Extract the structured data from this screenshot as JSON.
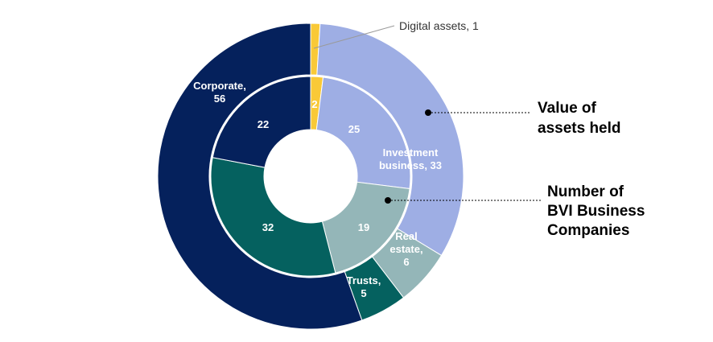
{
  "chart_data": {
    "type": "donut",
    "title": "",
    "rings": [
      {
        "name": "Value of assets held",
        "position": "outer",
        "slices": [
          {
            "label": "Digital assets",
            "value": 1,
            "color": "#F9C937",
            "display": "Digital assets, 1"
          },
          {
            "label": "Investment business",
            "value": 33,
            "color": "#9EAEE4",
            "display": [
              "Investment",
              "business, 33"
            ]
          },
          {
            "label": "Real estate",
            "value": 6,
            "color": "#94B6B8",
            "display": [
              "Real",
              "estate,",
              "6"
            ]
          },
          {
            "label": "Trusts",
            "value": 5,
            "color": "#05615F",
            "display": [
              "Trusts,",
              "5"
            ]
          },
          {
            "label": "Corporate",
            "value": 56,
            "color": "#05215C",
            "display": [
              "Corporate,",
              "56"
            ]
          }
        ]
      },
      {
        "name": "Number of BVI Business Companies",
        "position": "inner",
        "slices": [
          {
            "label": "Digital assets",
            "value": 2,
            "color": "#F9C937",
            "display": "2"
          },
          {
            "label": "Investment business",
            "value": 25,
            "color": "#9EAEE4",
            "display": "25"
          },
          {
            "label": "Real estate",
            "value": 19,
            "color": "#94B6B8",
            "display": "19"
          },
          {
            "label": "Trusts",
            "value": 32,
            "color": "#05615F",
            "display": "32"
          },
          {
            "label": "Corporate",
            "value": 22,
            "color": "#05215C",
            "display": "22"
          }
        ]
      }
    ],
    "callouts": {
      "outer": [
        "Value of",
        "assets held"
      ],
      "inner": [
        "Number of",
        "BVI Business",
        "Companies"
      ]
    }
  }
}
